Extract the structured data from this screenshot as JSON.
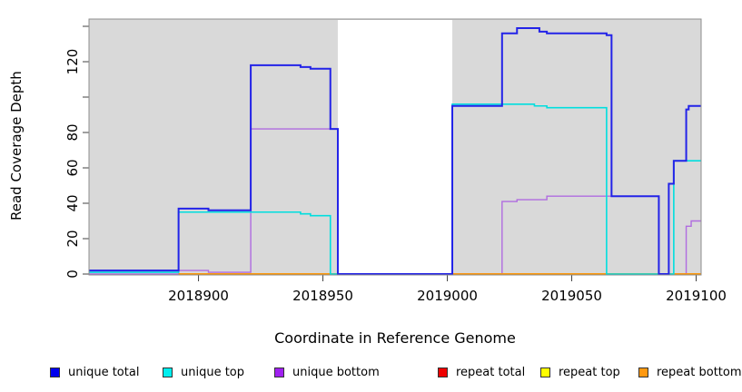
{
  "chart_data": {
    "type": "line",
    "title": "",
    "xlabel": "Coordinate in Reference Genome",
    "ylabel": "Read Coverage Depth",
    "xlim": [
      2018856,
      2019102
    ],
    "ylim": [
      0,
      144
    ],
    "grid": false,
    "legend_position": "bottom",
    "plot_background": "#d9d9d9",
    "uncovered_region": [
      2018956,
      2019002
    ],
    "x_ticks": [
      2018900,
      2018950,
      2019000,
      2019050,
      2019100
    ],
    "y_ticks": [
      0,
      20,
      40,
      60,
      80,
      100,
      120,
      140
    ],
    "y_tick_labeled": [
      0,
      20,
      40,
      60,
      80,
      120
    ],
    "x_axis": {
      "title": "Coordinate in Reference Genome"
    },
    "y_axis": {
      "title": "Read Coverage Depth"
    },
    "series": [
      {
        "name": "repeat top",
        "color": "#ffff00",
        "width": 1.4,
        "points": [
          [
            2018892,
            0
          ]
        ]
      },
      {
        "name": "repeat total",
        "color": "#c43b6e",
        "width": 1.4,
        "points": [
          [
            2018892,
            0
          ]
        ]
      },
      {
        "name": "unique bottom",
        "color": "#b06ce0",
        "width": 1.4,
        "points": [
          [
            2018856,
            0
          ],
          [
            2018892,
            2
          ],
          [
            2018904,
            1
          ],
          [
            2018921,
            82
          ],
          [
            2018956,
            0
          ],
          [
            2019022,
            41
          ],
          [
            2019028,
            42
          ],
          [
            2019040,
            44
          ],
          [
            2019085,
            0
          ],
          [
            2019096,
            27
          ],
          [
            2019098,
            30
          ]
        ]
      },
      {
        "name": "repeat bottom",
        "color": "#ff9900",
        "width": 1.8,
        "points": [
          [
            2018892,
            0
          ]
        ]
      },
      {
        "name": "unique top",
        "color": "#00dede",
        "width": 1.6,
        "points": [
          [
            2018856,
            1
          ],
          [
            2018892,
            35
          ],
          [
            2018941,
            34
          ],
          [
            2018945,
            33
          ],
          [
            2018953,
            0
          ],
          [
            2019002,
            96
          ],
          [
            2019035,
            95
          ],
          [
            2019040,
            94
          ],
          [
            2019064,
            0
          ],
          [
            2019091,
            64
          ]
        ]
      },
      {
        "name": "unique total",
        "color": "#2323e8",
        "width": 2,
        "points": [
          [
            2018856,
            2
          ],
          [
            2018892,
            37
          ],
          [
            2018904,
            36
          ],
          [
            2018921,
            118
          ],
          [
            2018941,
            117
          ],
          [
            2018945,
            116
          ],
          [
            2018953,
            82
          ],
          [
            2018956,
            0
          ],
          [
            2019002,
            95
          ],
          [
            2019022,
            136
          ],
          [
            2019028,
            139
          ],
          [
            2019037,
            137
          ],
          [
            2019040,
            136
          ],
          [
            2019064,
            135
          ],
          [
            2019066,
            44
          ],
          [
            2019085,
            0
          ],
          [
            2019089,
            51
          ],
          [
            2019091,
            64
          ],
          [
            2019096,
            93
          ],
          [
            2019097,
            95
          ]
        ]
      }
    ],
    "legend": [
      {
        "label": "unique total",
        "fill": "#0000ee"
      },
      {
        "label": "unique top",
        "fill": "#00eeee"
      },
      {
        "label": "unique bottom",
        "fill": "#a020f0"
      },
      {
        "label": "repeat total",
        "fill": "#ee0000"
      },
      {
        "label": "repeat top",
        "fill": "#ffff00"
      },
      {
        "label": "repeat bottom",
        "fill": "#ff9912"
      }
    ]
  }
}
